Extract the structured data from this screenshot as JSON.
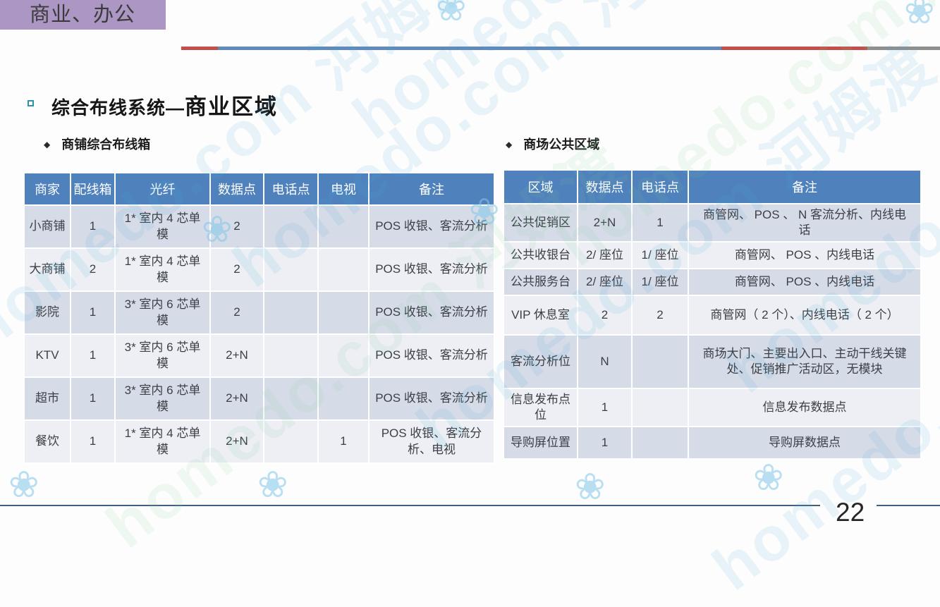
{
  "slide": {
    "category_label": "商业、办公",
    "title_prefix": "综合布线系统—",
    "title_main": "商业区域",
    "page_number": "22"
  },
  "icons": {
    "diamond_bullet": "◆",
    "flower": "❀"
  },
  "watermark": {
    "text": "homedo.com 河姆渡"
  },
  "colors": {
    "table_header_blue": "#4f81bd",
    "row_band_dark": "#d6dbe8",
    "row_band_light": "#edeff5",
    "category_box_purple": "#ac96c3",
    "rule_red": "#c0504d",
    "rule_blue": "#6189ba",
    "rule_gray": "#8f8f8f",
    "footer_line": "#40607f",
    "bullet_teal": "#2d93aa"
  },
  "left_section": {
    "heading": "商铺综合布线箱",
    "table": {
      "headers": [
        "商家",
        "配线箱",
        "光纤",
        "数据点",
        "电话点",
        "电视",
        "备注"
      ],
      "rows": [
        [
          "小商铺",
          "1",
          "1* 室内 4 芯单模",
          "2",
          "",
          "",
          "POS 收银、客流分析"
        ],
        [
          "大商铺",
          "2",
          "1* 室内 4 芯单模",
          "2",
          "",
          "",
          "POS 收银、客流分析"
        ],
        [
          "影院",
          "1",
          "3* 室内 6 芯单模",
          "2",
          "",
          "",
          "POS 收银、客流分析"
        ],
        [
          "KTV",
          "1",
          "3* 室内 6 芯单模",
          "2+N",
          "",
          "",
          "POS 收银、客流分析"
        ],
        [
          "超市",
          "1",
          "3* 室内 6 芯单模",
          "2+N",
          "",
          "",
          "POS 收银、客流分析"
        ],
        [
          "餐饮",
          "1",
          "1* 室内 4 芯单模",
          "2+N",
          "",
          "1",
          "POS 收银、客流分析、电视"
        ]
      ]
    }
  },
  "right_section": {
    "heading": "商场公共区域",
    "table": {
      "headers": [
        "区域",
        "数据点",
        "电话点",
        "备注"
      ],
      "rows": [
        [
          "公共促销区",
          "2+N",
          "1",
          "商管网、 POS 、 N 客流分析、内线电话"
        ],
        [
          "公共收银台",
          "2/ 座位",
          "1/ 座位",
          "商管网、 POS 、内线电话"
        ],
        [
          "公共服务台",
          "2/ 座位",
          "1/ 座位",
          "商管网、 POS 、内线电话"
        ],
        [
          "VIP 休息室",
          "2",
          "2",
          "商管网（ 2 个）、内线电话（ 2 个）"
        ],
        [
          "客流分析位",
          "N",
          "",
          "商场大门、主要出入口、主动干线关键处、促销推广活动区，无模块"
        ],
        [
          "信息发布点位",
          "1",
          "",
          "信息发布数据点"
        ],
        [
          "导购屏位置",
          "1",
          "",
          "导购屏数据点"
        ]
      ]
    }
  }
}
